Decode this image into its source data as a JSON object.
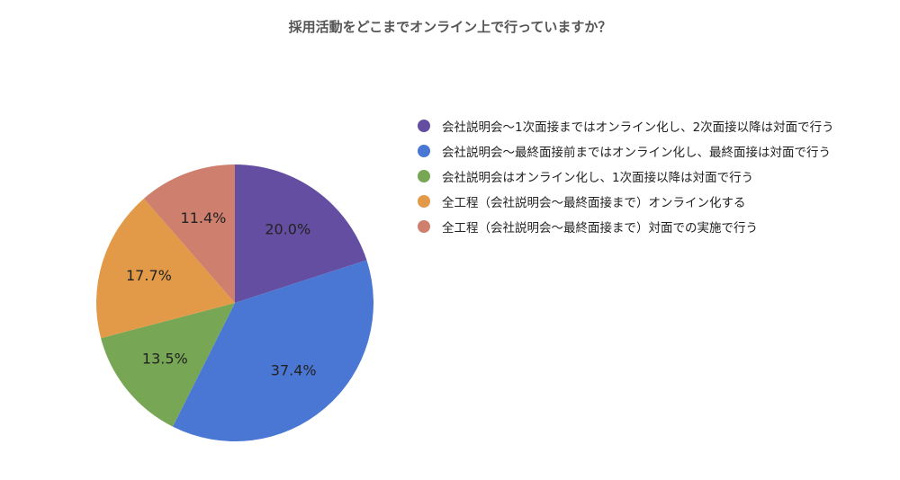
{
  "chart_data": {
    "type": "pie",
    "title": "採用活動をどこまでオンライン上で行っていますか？",
    "categories": [
      "会社説明会〜1次面接まではオンライン化し、2次面接以降は対面で行う",
      "会社説明会〜最終面接前まではオンライン化し、最終面接は対面で行う",
      "会社説明会はオンライン化し、1次面接以降は対面で行う",
      "全工程（会社説明会〜最終面接まで）オンライン化する",
      "全工程（会社説明会〜最終面接まで）対面での実施で行う"
    ],
    "values": [
      20.0,
      37.4,
      13.5,
      17.7,
      11.4
    ],
    "labels": [
      "20.0%",
      "37.4%",
      "13.5%",
      "17.7%",
      "11.4%"
    ],
    "colors": [
      "#634ea1",
      "#4b77d4",
      "#77a655",
      "#e29a48",
      "#cf7f6e"
    ],
    "legend_position": "right"
  }
}
